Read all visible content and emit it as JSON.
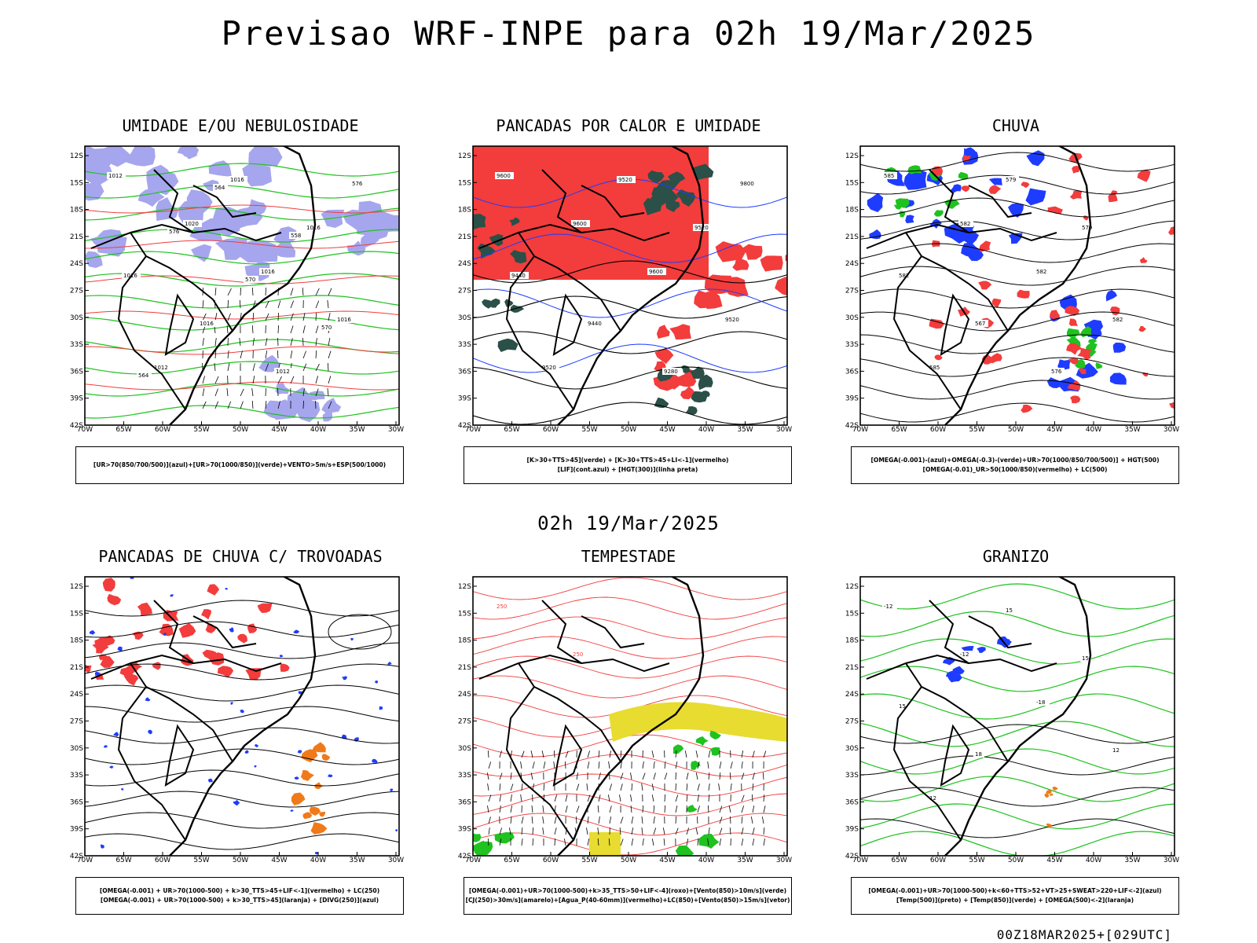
{
  "title": "Previsao WRF-INPE  para 02h 19/Mar/2025",
  "mid_date": "02h 19/Mar/2025",
  "footer": "00Z18MAR2025+[029UTC]",
  "axes": {
    "lat_labels": [
      "12S",
      "15S",
      "18S",
      "21S",
      "24S",
      "27S",
      "30S",
      "33S",
      "36S",
      "39S",
      "42S"
    ],
    "lon_labels": [
      "70W",
      "65W",
      "60W",
      "55W",
      "50W",
      "45W",
      "40W",
      "35W",
      "30W"
    ]
  },
  "colors": {
    "red": "#f33c3c",
    "green": "#1fc21f",
    "blue": "#1e3cff",
    "lavender": "#a6a6ee",
    "darkgreen": "#2a5048",
    "yellow": "#e8dc30",
    "orange": "#f07a1a",
    "purple": "#c020c0"
  },
  "panels": [
    {
      "id": "umidade",
      "title": "UMIDADE E/OU NEBULOSIDADE",
      "legend": [
        "[UR>70(850/700/500)](azul)+[UR>70(1000/850)](verde)+VENTO>5m/s+ESP(500/1000)"
      ],
      "contour_labels": [
        "1012",
        "1020",
        "1016",
        "1016",
        "1012",
        "1016",
        "1016",
        "1016",
        "1016",
        "1012",
        "576",
        "576",
        "570",
        "570",
        "564",
        "564",
        "558"
      ]
    },
    {
      "id": "pancadas-calor",
      "title": "PANCADAS POR CALOR E UMIDADE",
      "legend": [
        "[K>30+TTS>45](verde)  +  [K>30+TTS>45+LI<-1](vermelho)",
        "[LIF](cont.azul)  +  [HGT(300)](linha preta)"
      ],
      "contour_labels": [
        "9600",
        "9600",
        "9600",
        "9520",
        "9520",
        "9520",
        "9520",
        "9440",
        "9440",
        "9280",
        "9800"
      ]
    },
    {
      "id": "chuva",
      "title": "CHUVA",
      "legend": [
        "[OMEGA(-0.001)-(azul)+OMEGA(-0.3)-(verde)+UR>70(1000/850/700/500)]  +  HGT(500)",
        "[OMEGA(-0.01)_UR>50(1000/850)(vermelho)  +  LC(500)"
      ],
      "contour_labels": [
        "585",
        "582",
        "582",
        "582",
        "585",
        "579",
        "579",
        "582",
        "567",
        "576"
      ]
    },
    {
      "id": "pancadas-trovoadas",
      "title": "PANCADAS DE CHUVA C/ TROVOADAS",
      "legend": [
        "[OMEGA(-0.001)  +  UR>70(1000-500)  +  k>30_TTS>45+LIF<-1](vermelho)  +  LC(250)",
        "[OMEGA(-0.001)  +  UR>70(1000-500)  +  k>30_TTS>45](laranja)  +  [DIVG(250)](azul)"
      ],
      "contour_labels": []
    },
    {
      "id": "tempestade",
      "title": "TEMPESTADE",
      "legend": [
        "[OMEGA(-0.001)+UR>70(1000-500)+k>35_TTS>50+LIF<-4](roxo)+[Vento(850)>10m/s](verde)",
        "[CJ(250)>30m/s](amarelo)+[Agua_P(40-60mm)](vermelho)+LC(850)+[Vento(850)>15m/s](vetor)"
      ],
      "contour_labels": [
        "250",
        "250"
      ]
    },
    {
      "id": "granizo",
      "title": "GRANIZO",
      "legend": [
        "[OMEGA(-0.001)+UR>70(1000-500)+k<60+TTS>52+VT>25+SWEAT>220+LIF<-2](azul)",
        "[Temp(500)](preto)  +  [Temp(850)](verde)  +  [OMEGA(500)<-2](laranja)"
      ],
      "contour_labels": [
        "-12",
        "-12",
        "-18",
        "12",
        "12",
        "15",
        "15",
        "15",
        "18"
      ]
    }
  ]
}
